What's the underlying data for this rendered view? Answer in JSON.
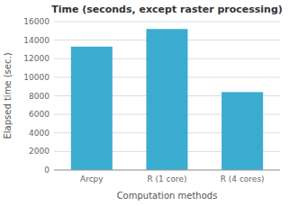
{
  "chart_data": {
    "type": "bar",
    "title": "Time (seconds, except raster processing)",
    "xlabel": "Computation methods",
    "ylabel": "Elapsed time (sec.)",
    "categories": [
      "Arcpy",
      "R (1 core)",
      "R (4 cores)"
    ],
    "values": [
      13300,
      15200,
      8400
    ],
    "color": "#3aaccf",
    "ylim": [
      0,
      16000
    ],
    "yticks": [
      0,
      2000,
      4000,
      6000,
      8000,
      10000,
      12000,
      14000,
      16000
    ],
    "grid": true
  }
}
